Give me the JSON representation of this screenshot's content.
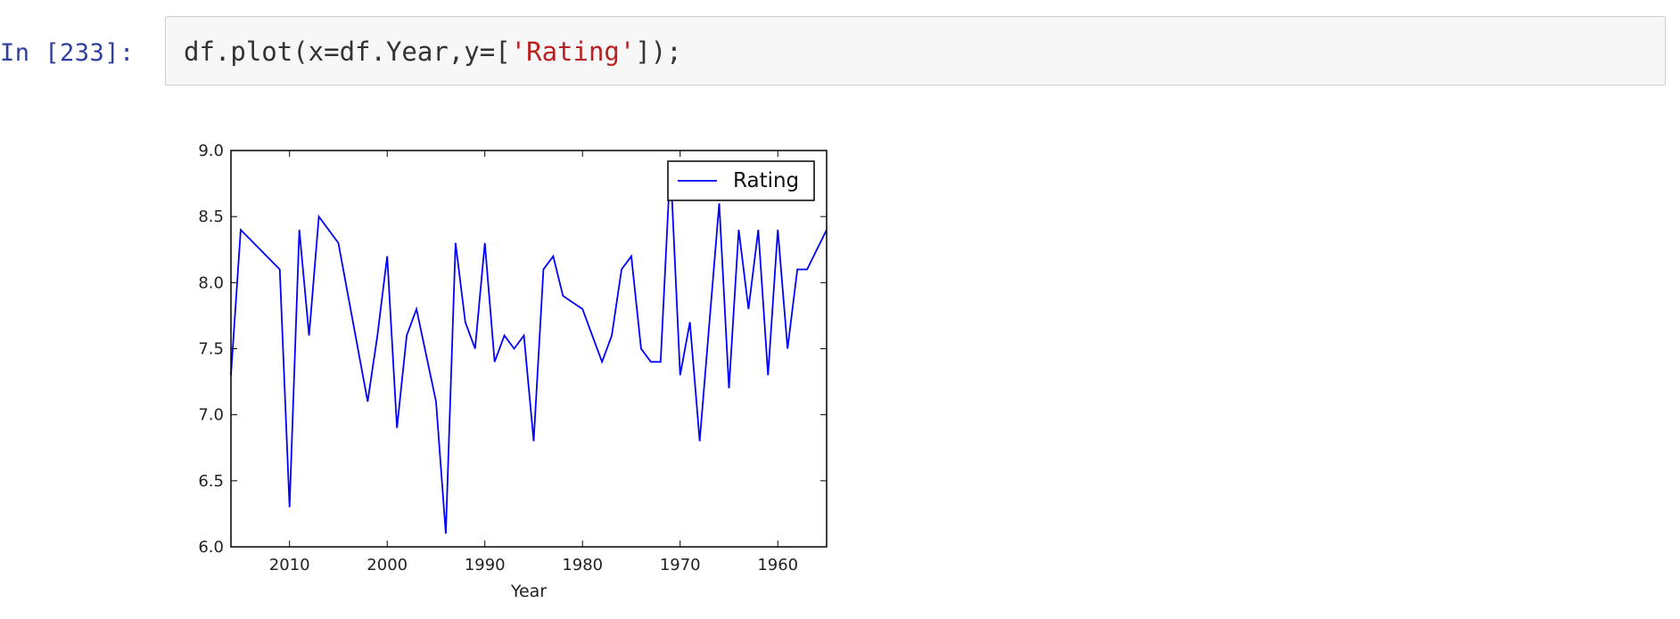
{
  "cell": {
    "prompt": "In [233]:",
    "code_before": "df.plot(x=df.Year,y=[",
    "code_string": "'Rating'",
    "code_after": "]);"
  },
  "chart_data": {
    "type": "line",
    "xlabel": "Year",
    "ylabel": "",
    "xlim": [
      2016,
      1955
    ],
    "ylim": [
      6.0,
      9.0
    ],
    "x_inverted": true,
    "grid": false,
    "legend_position": "top-right",
    "xticks": [
      2010,
      2000,
      1990,
      1980,
      1970,
      1960
    ],
    "yticks": [
      "6.0",
      "6.5",
      "7.0",
      "7.5",
      "8.0",
      "8.5",
      "9.0"
    ],
    "series": [
      {
        "name": "Rating",
        "color": "#0000ff",
        "x": [
          2016,
          2015,
          2011,
          2010,
          2009,
          2008,
          2007,
          2005,
          2004,
          2002,
          2001,
          2000,
          1999,
          1998,
          1997,
          1995,
          1994,
          1993,
          1992,
          1991,
          1990,
          1989,
          1988,
          1987,
          1986,
          1985,
          1984,
          1983,
          1982,
          1980,
          1979,
          1978,
          1977,
          1976,
          1975,
          1974,
          1973,
          1972,
          1971,
          1970,
          1969,
          1968,
          1967,
          1966,
          1965,
          1964,
          1963,
          1962,
          1961,
          1960,
          1959,
          1958,
          1957,
          1955
        ],
        "y": [
          7.3,
          8.4,
          8.1,
          6.3,
          8.4,
          7.6,
          8.5,
          8.3,
          7.9,
          7.1,
          7.6,
          8.2,
          6.9,
          7.6,
          7.8,
          7.1,
          6.1,
          8.3,
          7.7,
          7.5,
          8.3,
          7.4,
          7.6,
          7.5,
          7.6,
          6.8,
          8.1,
          8.2,
          7.9,
          7.8,
          7.6,
          7.4,
          7.6,
          8.1,
          8.2,
          7.5,
          7.4,
          7.4,
          8.9,
          7.3,
          7.7,
          6.8,
          7.7,
          8.6,
          7.2,
          8.4,
          7.8,
          8.4,
          7.3,
          8.4,
          7.5,
          8.1,
          8.1,
          8.4
        ]
      }
    ]
  }
}
